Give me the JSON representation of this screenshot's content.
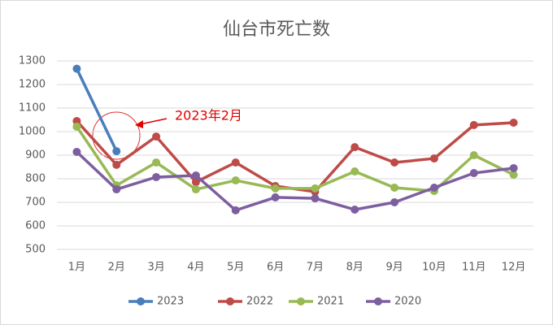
{
  "chart_data": {
    "type": "line",
    "title": "仙台市死亡数",
    "categories": [
      "1月",
      "2月",
      "3月",
      "4月",
      "5月",
      "6月",
      "7月",
      "8月",
      "9月",
      "10月",
      "11月",
      "12月"
    ],
    "series": [
      {
        "name": "2023",
        "color": "#4a7ebb",
        "values": [
          1267,
          917,
          null,
          null,
          null,
          null,
          null,
          null,
          null,
          null,
          null,
          null
        ]
      },
      {
        "name": "2022",
        "color": "#be4b48",
        "values": [
          1045,
          859,
          979,
          786,
          869,
          769,
          745,
          934,
          869,
          886,
          1028,
          1038
        ]
      },
      {
        "name": "2021",
        "color": "#98b954",
        "values": [
          1021,
          772,
          869,
          755,
          793,
          759,
          759,
          831,
          762,
          748,
          900,
          817
        ]
      },
      {
        "name": "2020",
        "color": "#7d5fa0",
        "values": [
          914,
          755,
          807,
          814,
          666,
          721,
          717,
          669,
          700,
          762,
          824,
          845
        ]
      }
    ],
    "ylim": [
      500,
      1300
    ],
    "yticks": [
      500,
      600,
      700,
      800,
      900,
      1000,
      1100,
      1200,
      1300
    ],
    "grid": true,
    "legend": "bottom",
    "annotation": "2023年2月"
  }
}
